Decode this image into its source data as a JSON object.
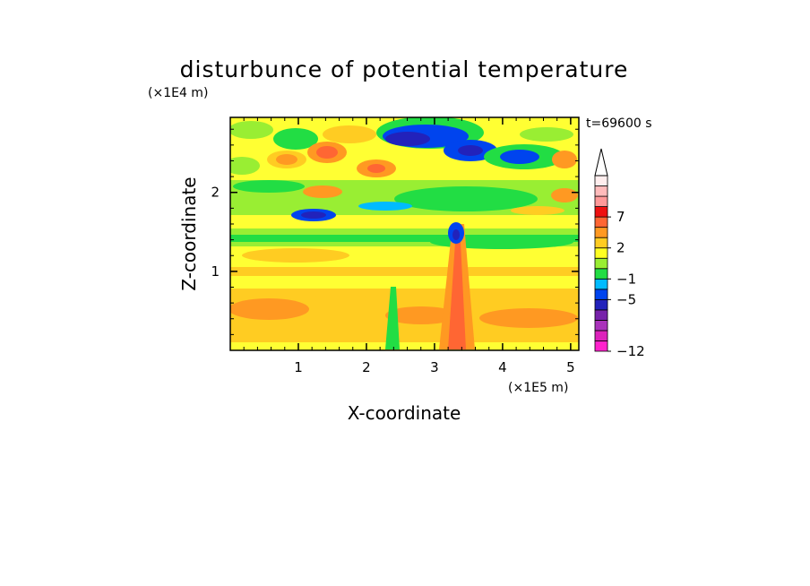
{
  "chart_data": {
    "type": "heatmap",
    "title": "disturbunce of potential temperature",
    "xlabel": "X-coordinate",
    "ylabel": "Z-coordinate",
    "x_unit": "(×1E5 m)",
    "y_unit": "(×1E4 m)",
    "time_label": "t=69600 s",
    "xlim": [
      0,
      5.12
    ],
    "ylim": [
      0,
      2.95
    ],
    "x_ticks": [
      "1",
      "2",
      "3",
      "4",
      "5"
    ],
    "y_ticks": [
      "1",
      "2"
    ],
    "x_tick_values": [
      1,
      2,
      3,
      4,
      5
    ],
    "y_tick_values": [
      1,
      2
    ],
    "colorbar": {
      "labels": [
        "7",
        "2",
        "−1",
        "−5",
        "−12"
      ],
      "label_values": [
        7,
        2,
        -1,
        -5,
        -12
      ],
      "extend": "max",
      "levels_colors_bottom_to_top": [
        "#ff22cc",
        "#dd22bb",
        "#aa33bb",
        "#7722aa",
        "#2222bb",
        "#0044ee",
        "#00bbff",
        "#22dd44",
        "#99ee33",
        "#ffff22",
        "#ffcc22",
        "#ff9922",
        "#ff6633",
        "#ee1111",
        "#ff9999",
        "#ffbbbb",
        "#ffeeee"
      ]
    }
  }
}
